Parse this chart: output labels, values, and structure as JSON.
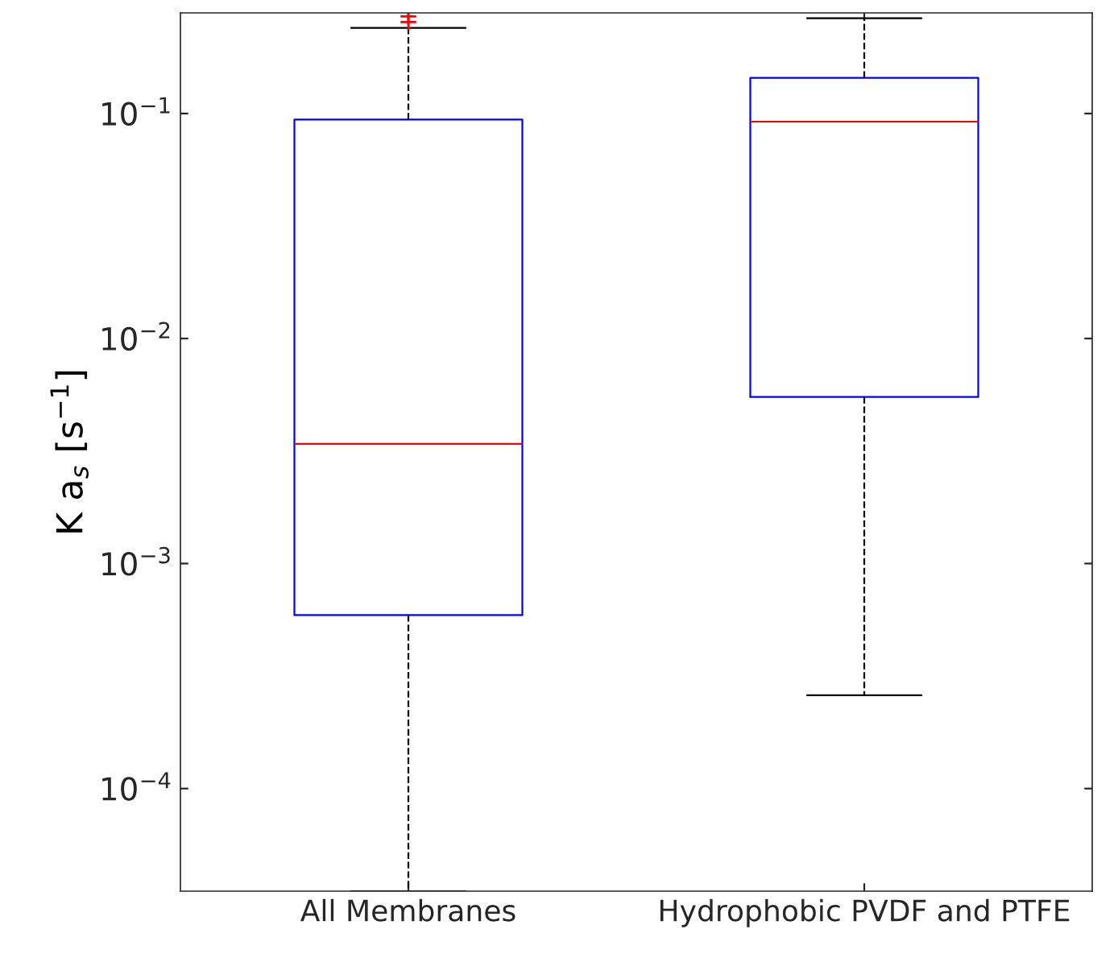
{
  "chart_data": {
    "type": "box",
    "ylabel": "K a$_{s}$ [s$^{−1}$]",
    "categories": [
      "All Membranes",
      "Hydrophobic PVDF and PTFE"
    ],
    "boxes": [
      {
        "low": 3.5e-05,
        "q1": 0.00059,
        "median": 0.0034,
        "q3": 0.094,
        "high": 0.24,
        "outliers": [
          0.255,
          0.27
        ]
      },
      {
        "low": 0.00026,
        "q1": 0.0055,
        "median": 0.092,
        "q3": 0.144,
        "high": 0.265
      }
    ],
    "color": "#0000ff",
    "marker": "cross",
    "line_style": "dashed",
    "log": "y",
    "ylim": [
      3.5e-05,
      0.28
    ],
    "yticks": [
      {
        "value": 0.0001,
        "label": "10$^{−4}$"
      },
      {
        "value": 0.001,
        "label": "10$^{−3}$"
      },
      {
        "value": 0.01,
        "label": "10$^{−2}$"
      },
      {
        "value": 0.1,
        "label": "10$^{−1}$"
      }
    ],
    "grid": false
  }
}
